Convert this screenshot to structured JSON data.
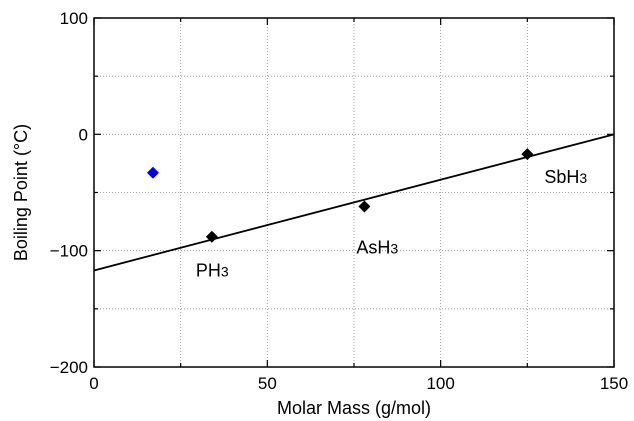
{
  "chart_data": {
    "type": "scatter",
    "title": "",
    "xlabel": "Molar Mass (g/mol)",
    "ylabel": "Boiling Point (°C)",
    "xlim": [
      0,
      150
    ],
    "ylim": [
      -200,
      100
    ],
    "xticks": [
      0,
      50,
      100,
      150
    ],
    "xtick_labels": [
      "0",
      "50",
      "100",
      "150"
    ],
    "yticks": [
      -200,
      -100,
      0,
      100
    ],
    "ytick_labels": [
      "−200",
      "−100",
      "0",
      "100"
    ],
    "grid": true,
    "series": [
      {
        "color": "#000000",
        "marker": "diamond",
        "points": [
          {
            "x": 34,
            "y": -88
          },
          {
            "x": 78,
            "y": -62
          },
          {
            "x": 125,
            "y": -17
          }
        ]
      },
      {
        "color": "#0000ff",
        "marker": "diamond",
        "points": [
          {
            "x": 17,
            "y": -33
          }
        ]
      }
    ],
    "fit_line": {
      "color": "#000000",
      "x": [
        0,
        150
      ],
      "y": [
        -117,
        0
      ]
    },
    "annotations": [
      {
        "base": "PH",
        "sub": "3",
        "x": 34,
        "y": -88
      },
      {
        "base": "AsH",
        "sub": "3",
        "x": 78,
        "y": -62
      },
      {
        "base": "SbH",
        "sub": "3",
        "x": 125,
        "y": -17
      }
    ]
  }
}
